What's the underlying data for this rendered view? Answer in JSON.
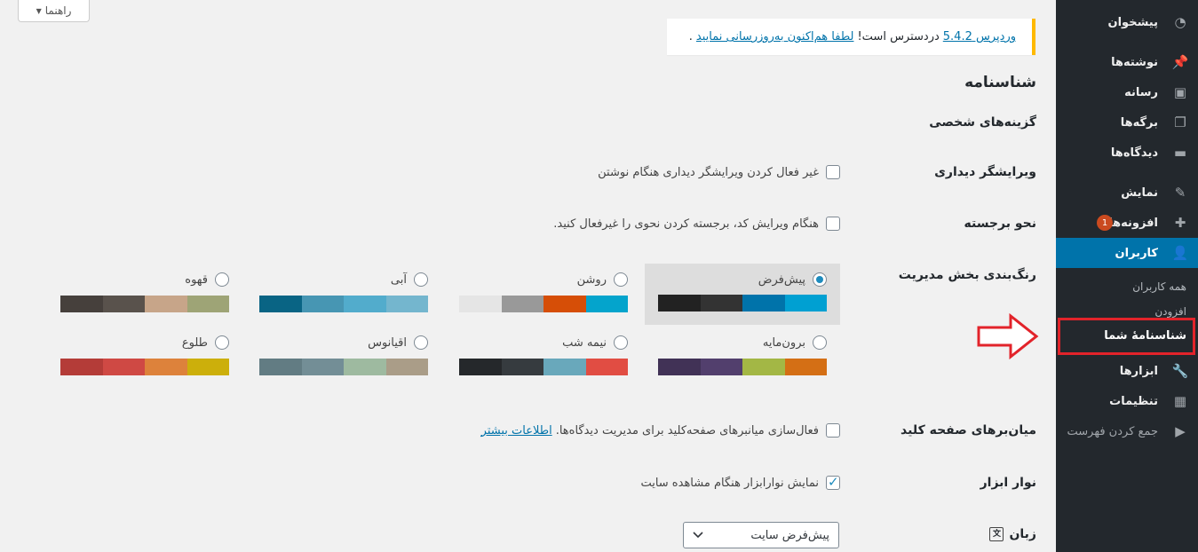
{
  "sidebar": {
    "items": [
      {
        "label": "پیشخوان",
        "icon": "dashboard-icon",
        "glyph": "◔"
      },
      {
        "label": "نوشته‌ها",
        "icon": "pin-icon",
        "glyph": "📌"
      },
      {
        "label": "رسانه",
        "icon": "media-icon",
        "glyph": "▣"
      },
      {
        "label": "برگه‌ها",
        "icon": "pages-icon",
        "glyph": "❐"
      },
      {
        "label": "دیدگاه‌ها",
        "icon": "comments-icon",
        "glyph": "▬"
      },
      {
        "label": "نمایش",
        "icon": "appearance-icon",
        "glyph": "✎"
      },
      {
        "label": "افزونه‌ها",
        "icon": "plugins-icon",
        "glyph": "✚",
        "badge": "1"
      },
      {
        "label": "کاربران",
        "icon": "users-icon",
        "glyph": "👤"
      },
      {
        "label": "ابزارها",
        "icon": "tools-icon",
        "glyph": "🔧"
      },
      {
        "label": "تنظیمات",
        "icon": "settings-icon",
        "glyph": "▦"
      },
      {
        "label": "جمع کردن فهرست",
        "icon": "collapse-icon",
        "glyph": "▶"
      }
    ],
    "submenu": [
      "همه کاربران",
      "افزودن",
      "شناسنامهٔ شما"
    ]
  },
  "help": {
    "label": "راهنما",
    "caret": "▼"
  },
  "notice": {
    "link1": "وردپرس 5.4.2",
    "text": "دردسترس است!",
    "link2": "لطفا هم‌اکنون به‌روزرسانی نمایید",
    "end": "."
  },
  "page": {
    "title": "شناسنامه",
    "section": "گزینه‌های شخصی"
  },
  "rows": {
    "visual_editor": {
      "label": "ویرایشگر دیداری",
      "text": "غیر فعال کردن ویرایشگر دیداری هنگام نوشتن"
    },
    "syntax": {
      "label": "نحو برجسته",
      "text": "هنگام ویرایش کد، برجسته کردن نحوی را غیرفعال کنید."
    },
    "colors": {
      "label": "رنگ‌بندی بخش مدیریت"
    },
    "shortcuts": {
      "label": "میان‌برهای صفحه کلید",
      "text": "فعال‌سازی میانبرهای صفحه‌کلید برای مدیریت دیدگاه‌ها.",
      "link": "اطلاعات بیشتر"
    },
    "toolbar": {
      "label": "نوار ابزار",
      "text": "نمایش نوارابزار هنگام مشاهده سایت"
    },
    "language": {
      "label": "زبان",
      "value": "پیش‌فرض سایت"
    }
  },
  "schemes": [
    {
      "name": "پیش‌فرض",
      "colors": [
        "#222222",
        "#333333",
        "#0073aa",
        "#00a0d2"
      ],
      "selected": true
    },
    {
      "name": "روشن",
      "colors": [
        "#e5e5e5",
        "#999999",
        "#d64e07",
        "#04a4cc"
      ]
    },
    {
      "name": "آبی",
      "colors": [
        "#096484",
        "#4796b3",
        "#52accc",
        "#74b6ce"
      ]
    },
    {
      "name": "قهوه",
      "colors": [
        "#46403c",
        "#59524c",
        "#c7a589",
        "#9ea476"
      ]
    },
    {
      "name": "برون‌مایه",
      "colors": [
        "#413256",
        "#523f6d",
        "#a3b745",
        "#d46f15"
      ]
    },
    {
      "name": "نیمه شب",
      "colors": [
        "#25282b",
        "#363b3f",
        "#69a8bb",
        "#e14d43"
      ]
    },
    {
      "name": "اقیانوس",
      "colors": [
        "#627c83",
        "#738e96",
        "#9ebaa0",
        "#aa9d88"
      ]
    },
    {
      "name": "طلوع",
      "colors": [
        "#b43c38",
        "#cf4944",
        "#dd823b",
        "#ccaf0b"
      ]
    }
  ]
}
